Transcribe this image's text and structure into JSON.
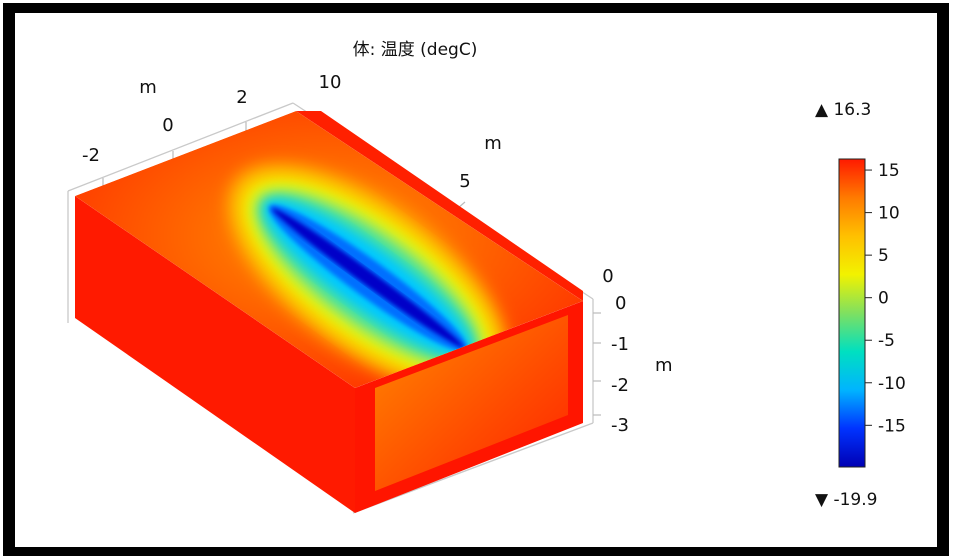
{
  "chart_data": {
    "type": "heatmap",
    "title": "体: 温度 (degC)",
    "render": "3D volume slice plot",
    "axes": {
      "x": {
        "unit_label": "m",
        "ticks": [
          "-2",
          "0",
          "2"
        ]
      },
      "y": {
        "unit_label": "m",
        "ticks": [
          "10",
          "5",
          "0"
        ]
      },
      "z": {
        "unit_label": "m",
        "ticks": [
          "0",
          "-1",
          "-2",
          "-3"
        ]
      }
    },
    "colorbar": {
      "max_label": "▲ 16.3",
      "min_label": "▼ -19.9",
      "max": 16.3,
      "min": -19.9,
      "ticks": [
        "15",
        "10",
        "5",
        "0",
        "-5",
        "-10",
        "-15"
      ],
      "tick_values": [
        15,
        10,
        5,
        0,
        -5,
        -10,
        -15
      ],
      "colormap": [
        "#0000b4",
        "#0033ff",
        "#00b4ff",
        "#00e0c0",
        "#7fe060",
        "#f2f200",
        "#ffc000",
        "#ff7a00",
        "#ff1a00"
      ]
    },
    "field_summary": {
      "ambient": 16.3,
      "cold_core": -19.9
    }
  }
}
